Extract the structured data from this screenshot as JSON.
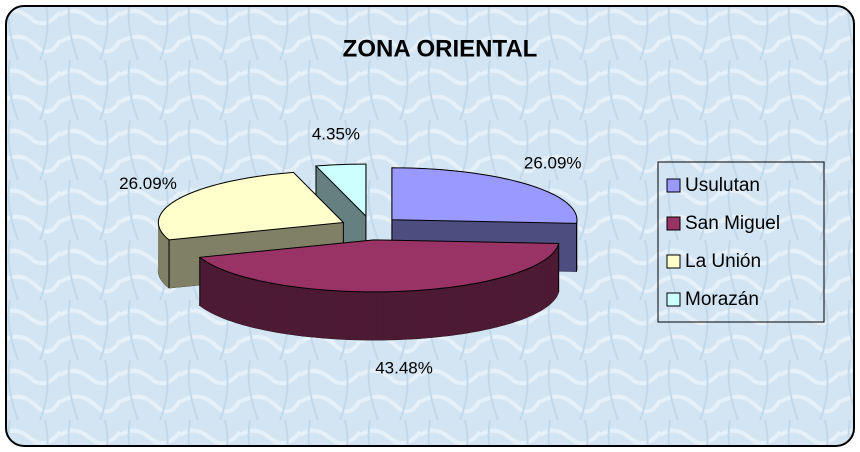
{
  "chart_data": {
    "type": "pie3d",
    "title": "ZONA ORIENTAL",
    "categories": [
      "Usulutan",
      "San Miguel",
      "La Unión",
      "Morazán"
    ],
    "values": [
      26.09,
      43.48,
      26.09,
      4.35
    ],
    "value_labels": [
      "26.09%",
      "43.48%",
      "26.09%",
      "4.35%"
    ],
    "colors": [
      "#9999ff",
      "#993366",
      "#ffffcc",
      "#ccffff"
    ],
    "legend": "right"
  }
}
